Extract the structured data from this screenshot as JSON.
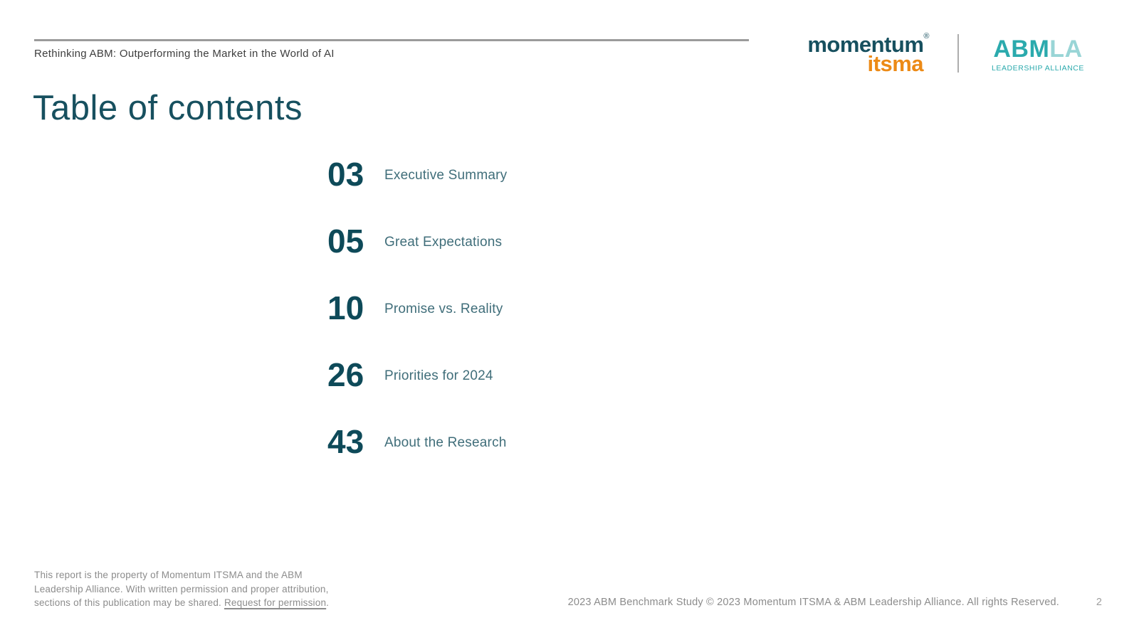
{
  "header": {
    "report_title": "Rethinking ABM: Outperforming the Market in the World of AI",
    "logos": {
      "momentum": {
        "wordmark": "momentum",
        "registered": "®",
        "sub_wordmark": "itsma"
      },
      "abmla": {
        "abm": "ABM",
        "la": "LA",
        "subtitle": "LEADERSHIP ALLIANCE"
      }
    }
  },
  "page_title": "Table of contents",
  "toc": {
    "entries": [
      {
        "page": "03",
        "label": "Executive Summary"
      },
      {
        "page": "05",
        "label": "Great Expectations"
      },
      {
        "page": "10",
        "label": "Promise vs. Reality"
      },
      {
        "page": "26",
        "label": "Priorities for 2024"
      },
      {
        "page": "43",
        "label": "About the Research"
      }
    ]
  },
  "footer": {
    "disclaimer_line1": "This report is the property of Momentum ITSMA and the ABM",
    "disclaimer_line2": "Leadership Alliance. With written permission and proper attribution,",
    "disclaimer_line3_pre": "sections of this publication may be shared. ",
    "permission_link_text": "Request for permission",
    "disclaimer_suffix": ".",
    "copyright": "2023 ABM Benchmark Study © 2023 Momentum ITSMA & ABM Leadership Alliance. All rights Reserved.",
    "page_number": "2"
  },
  "colors": {
    "accent_teal_dark": "#17505F",
    "toc_number_teal": "#0E4A59",
    "toc_label_teal": "#406E7A",
    "momentum_teal": "#17505F",
    "itsma_orange": "#EC8A16",
    "abm_teal": "#2BAAAD",
    "abm_light_teal": "#99D5D6",
    "rule_gray": "#9B9B9B",
    "header_text_gray": "#3E3E3E",
    "footer_text_gray": "#8C8C8C",
    "page_number_gray": "#9E9E9E"
  }
}
